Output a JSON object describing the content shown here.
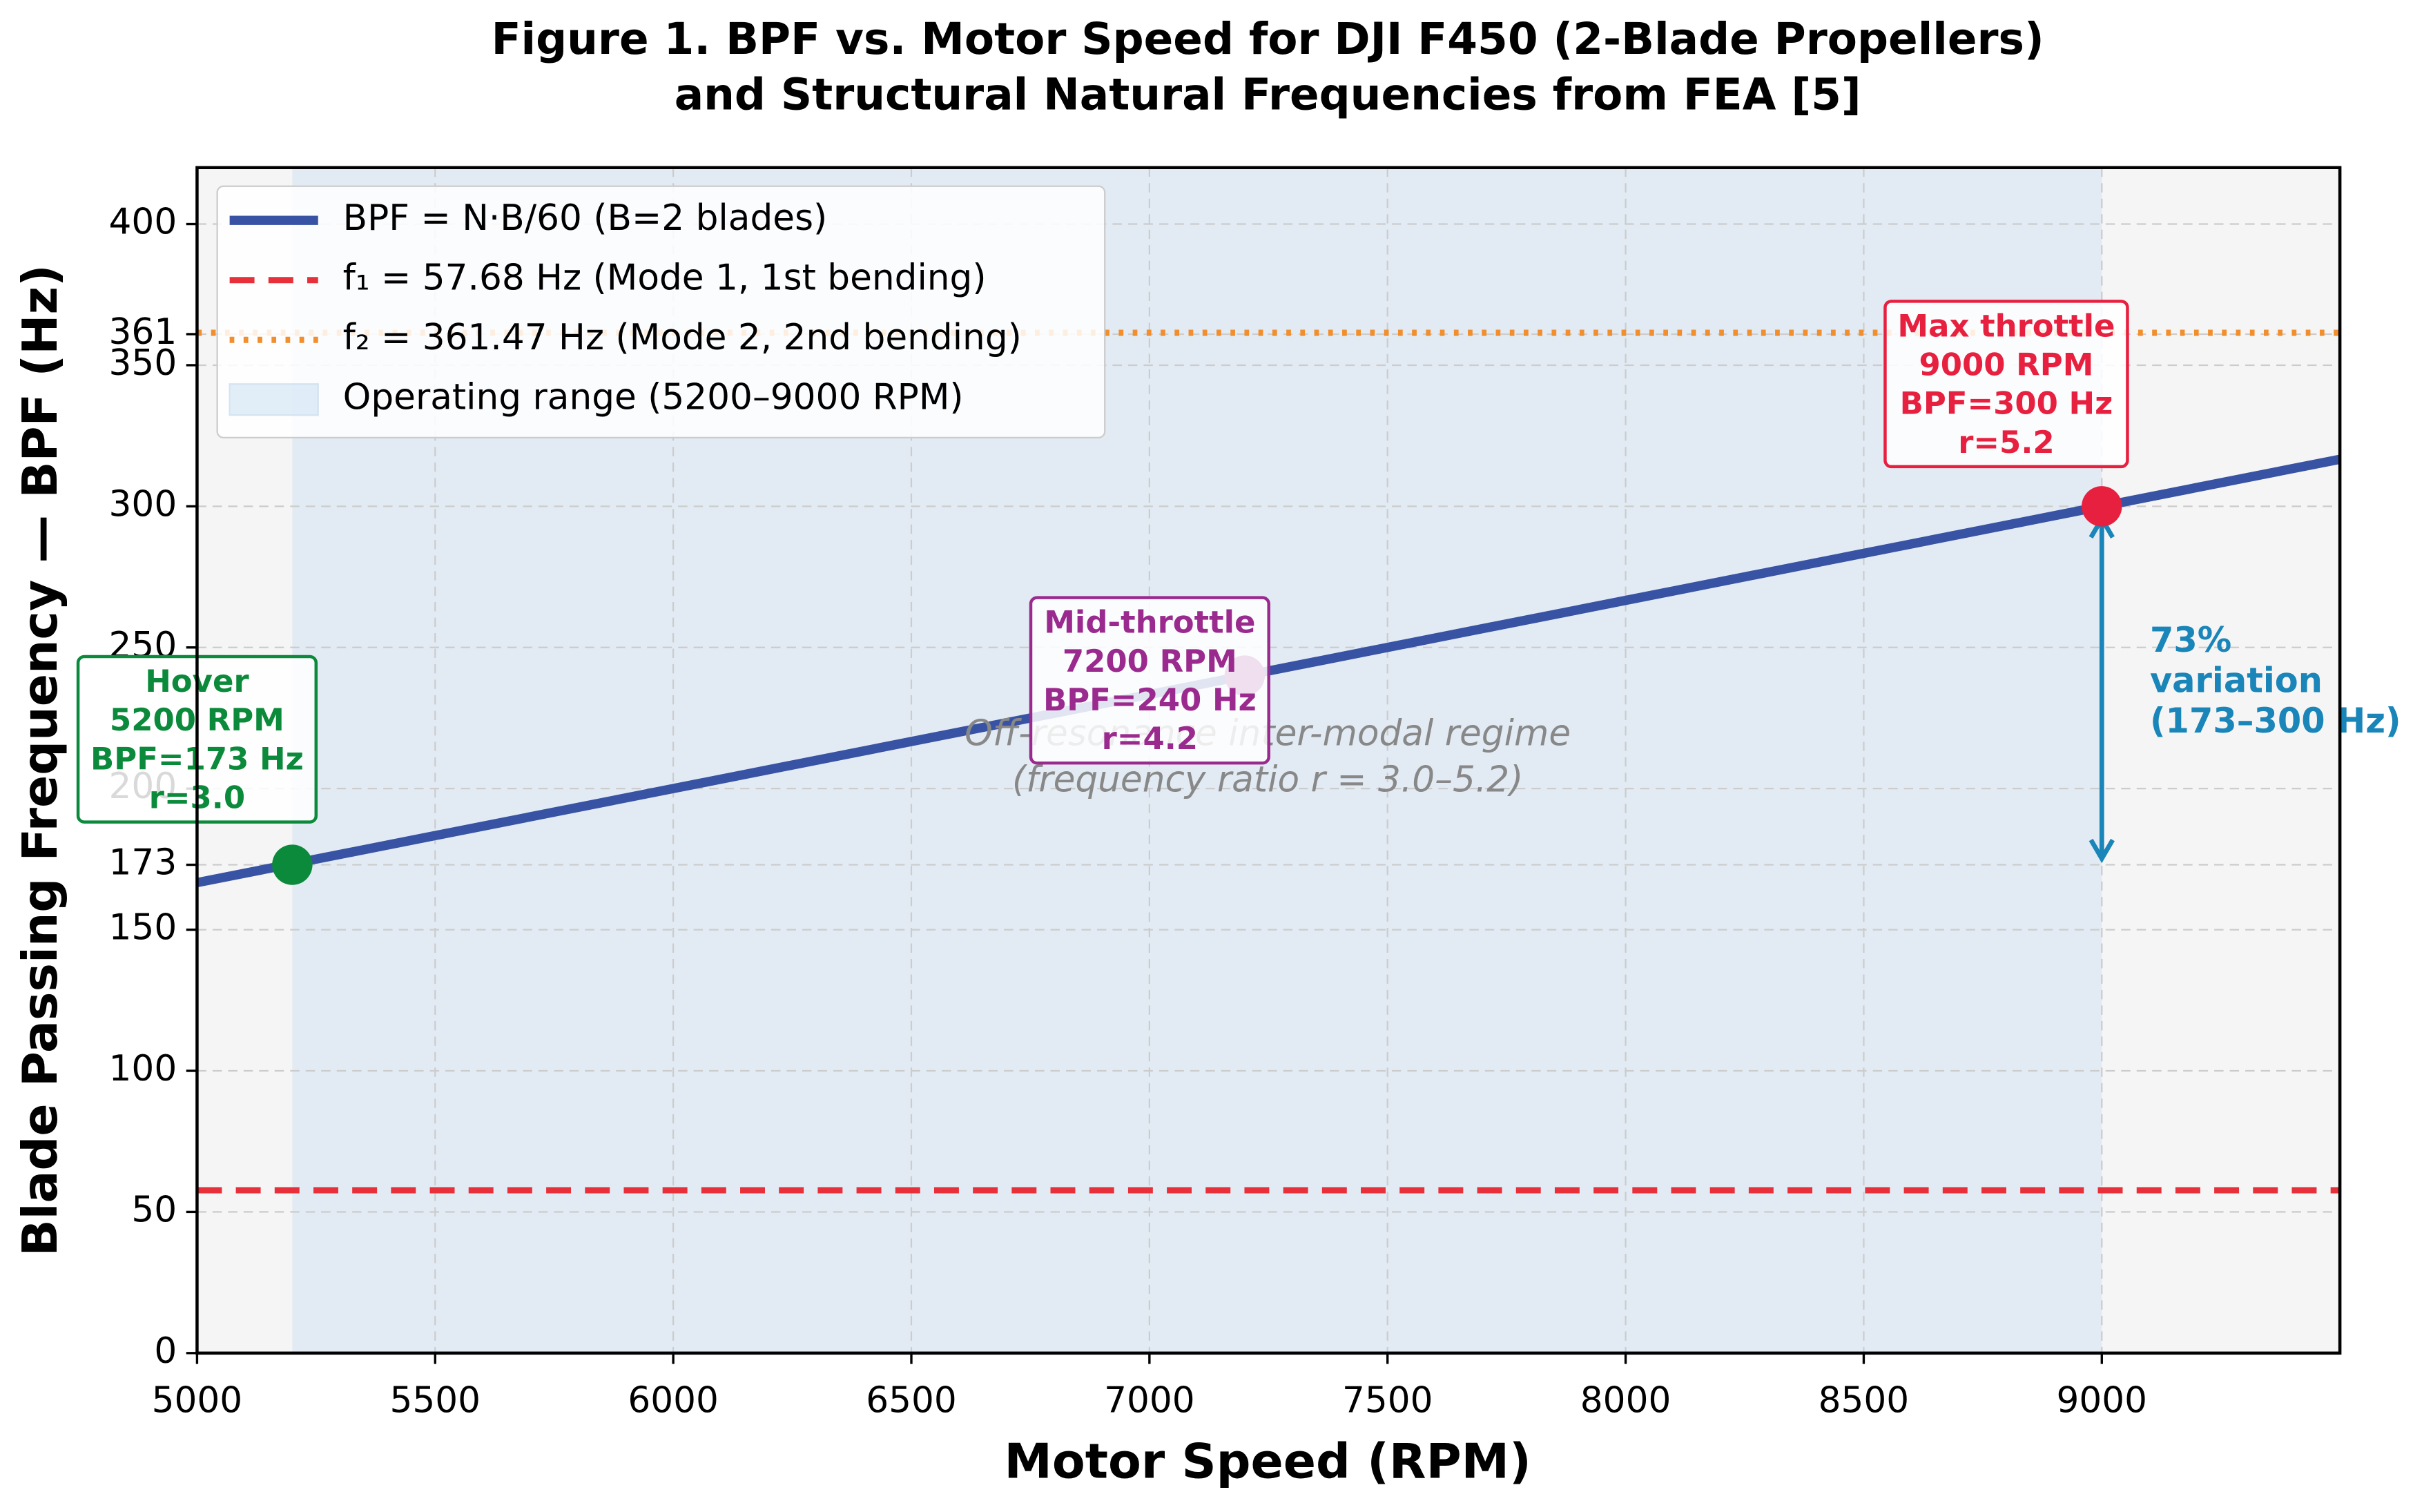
{
  "chart_data": {
    "type": "line",
    "title": [
      "Figure 1. BPF vs. Motor Speed for DJI F450 (2-Blade Propellers)",
      "and Structural Natural Frequencies from FEA [5]"
    ],
    "xlabel": "Motor Speed (RPM)",
    "ylabel": "Blade Passing Frequency — BPF (Hz)",
    "xlim": [
      5000,
      9500
    ],
    "ylim": [
      0,
      420
    ],
    "xticks": [
      5000,
      5500,
      6000,
      6500,
      7000,
      7500,
      8000,
      8500,
      9000
    ],
    "yticks": [
      0,
      50,
      100,
      150,
      173,
      200,
      250,
      300,
      350,
      361,
      400
    ],
    "grid": true,
    "legend": "upper left",
    "series": [
      {
        "name": "BPF = N·B/60 (B=2 blades)",
        "color": "#3953a4",
        "x": [
          5000,
          9500
        ],
        "values": [
          166.67,
          316.67
        ]
      }
    ],
    "hlines": [
      {
        "name": "f₁ = 57.68 Hz (Mode 1, 1st bending)",
        "value": 57.68,
        "color": "#e8303a",
        "style": "dashed"
      },
      {
        "name": "f₂ = 361.47 Hz (Mode 2, 2nd bending)",
        "value": 361.47,
        "color": "#f28e2b",
        "style": "dotted"
      }
    ],
    "span": {
      "name": "Operating range (5200–9000 RPM)",
      "x": [
        5200,
        9000
      ],
      "color": "#cfe2f3"
    },
    "points": [
      {
        "x": 5200,
        "value": 173,
        "color": "#0a8a3a",
        "label": [
          "Hover",
          "5200 RPM",
          "BPF=173 Hz",
          "r=3.0"
        ]
      },
      {
        "x": 7200,
        "value": 240,
        "color": "#9b2a8f",
        "label": [
          "Mid-throttle",
          "7200 RPM",
          "BPF=240 Hz",
          "r=4.2"
        ]
      },
      {
        "x": 9000,
        "value": 300,
        "color": "#e8203f",
        "label": [
          "Max throttle",
          "9000 RPM",
          "BPF=300 Hz",
          "r=5.2"
        ]
      }
    ],
    "arrow": {
      "x": 9000,
      "values": [
        173,
        300
      ],
      "color": "#1a85b8",
      "label": [
        "73%",
        "variation",
        "(173–300 Hz)"
      ]
    },
    "annotation": [
      "Off-resonance inter-modal regime",
      "(frequency ratio r = 3.0–5.2)"
    ]
  }
}
